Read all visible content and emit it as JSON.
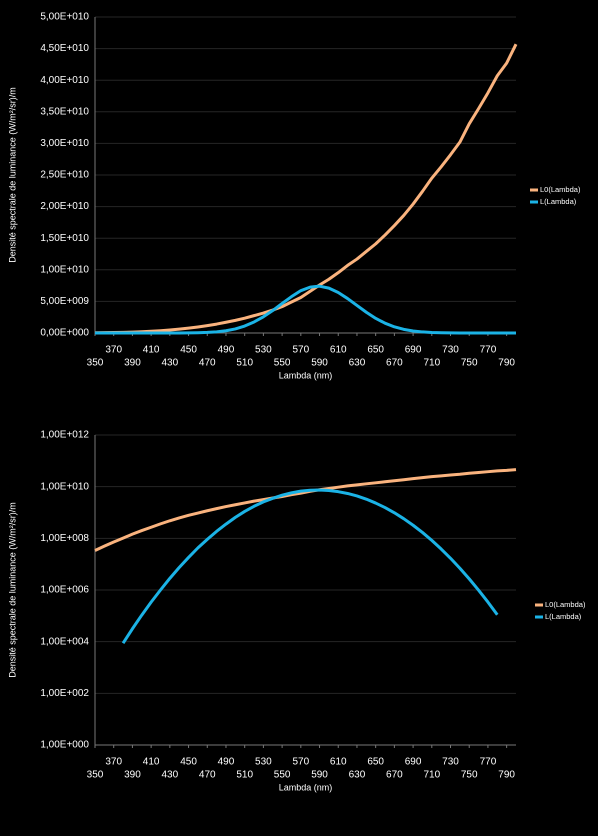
{
  "chart_data": [
    {
      "type": "line",
      "xlabel": "Lambda (nm)",
      "ylabel": "Densité spectrale de luminance (W/m²/sr)/m",
      "grid": true,
      "log_y": false,
      "legend": "right",
      "x": [
        350,
        360,
        370,
        380,
        390,
        400,
        410,
        420,
        430,
        440,
        450,
        460,
        470,
        480,
        490,
        500,
        510,
        520,
        530,
        540,
        550,
        560,
        570,
        580,
        590,
        600,
        610,
        620,
        630,
        640,
        650,
        660,
        670,
        680,
        690,
        700,
        710,
        720,
        730,
        740,
        750,
        760,
        770,
        780,
        790,
        800
      ],
      "series": [
        {
          "name": "L0(Lambda)",
          "color": "#fab37e",
          "values": [
            33900000.0,
            50100000.0,
            72400000.0,
            102000000.0,
            145000000.0,
            200000000.0,
            269000000.0,
            363000000.0,
            479000000.0,
            617000000.0,
            776000000.0,
            955000000.0,
            1170000000.0,
            1410000000.0,
            1700000000.0,
            2000000000.0,
            2340000000.0,
            2750000000.0,
            3160000000.0,
            3630000000.0,
            4170000000.0,
            4900000000.0,
            5620000000.0,
            6610000000.0,
            7590000000.0,
            8510000000.0,
            9550000000.0,
            10700000000.0,
            11700000000.0,
            12900000000.0,
            14100000000.0,
            15500000000.0,
            17000000000.0,
            18600000000.0,
            20400000000.0,
            22400000000.0,
            24500000000.0,
            26300000000.0,
            28200000000.0,
            30200000000.0,
            33100000000.0,
            35500000000.0,
            38000000000.0,
            40700000000.0,
            42700000000.0,
            45700000000.0
          ]
        },
        {
          "name": "L(Lambda)",
          "color": "#1bb3e6",
          "values": [
            129,
            562,
            2290,
            8710,
            31600.0,
            107000.0,
            339000.0,
            1000000.0,
            2820000.0,
            7410000.0,
            18200000.0,
            42700000.0,
            91200000.0,
            186000000.0,
            355000000.0,
            646000000.0,
            1100000000.0,
            1740000000.0,
            2570000000.0,
            3550000000.0,
            4680000000.0,
            5750000000.0,
            6700000000.0,
            7260000000.0,
            7410000000.0,
            7100000000.0,
            6410000000.0,
            5450000000.0,
            4360000000.0,
            3280000000.0,
            2320000000.0,
            1550000000.0,
            975000000.0,
            577000000.0,
            321000000.0,
            169000000.0,
            83200000.0,
            38600000.0,
            16900000.0,
            6970000.0,
            2700000.0,
            986000.0,
            340000.0,
            110000.0,
            33500.0,
            9590.0
          ]
        }
      ],
      "xlim": [
        350,
        800
      ],
      "xticks": [
        350,
        370,
        390,
        410,
        430,
        450,
        470,
        490,
        510,
        530,
        550,
        570,
        590,
        610,
        630,
        650,
        670,
        690,
        710,
        730,
        750,
        770,
        790
      ],
      "ylim": [
        0,
        50000000000.0
      ],
      "yticks": [
        {
          "value": 0,
          "label": "0,00E+000"
        },
        {
          "value": 5000000000.0,
          "label": "5,00E+009"
        },
        {
          "value": 10000000000.0,
          "label": "1,00E+010"
        },
        {
          "value": 15000000000.0,
          "label": "1,50E+010"
        },
        {
          "value": 20000000000.0,
          "label": "2,00E+010"
        },
        {
          "value": 25000000000.0,
          "label": "2,50E+010"
        },
        {
          "value": 30000000000.0,
          "label": "3,00E+010"
        },
        {
          "value": 35000000000.0,
          "label": "3,50E+010"
        },
        {
          "value": 40000000000.0,
          "label": "4,00E+010"
        },
        {
          "value": 45000000000.0,
          "label": "4,50E+010"
        },
        {
          "value": 50000000000.0,
          "label": "5,00E+010"
        }
      ]
    },
    {
      "type": "line",
      "xlabel": "Lambda (nm)",
      "ylabel": "Densité spectrale de luminance (W/m²/sr)/m",
      "grid": true,
      "log_y": true,
      "legend": "right",
      "x": [
        350,
        360,
        370,
        380,
        390,
        400,
        410,
        420,
        430,
        440,
        450,
        460,
        470,
        480,
        490,
        500,
        510,
        520,
        530,
        540,
        550,
        560,
        570,
        580,
        590,
        600,
        610,
        620,
        630,
        640,
        650,
        660,
        670,
        680,
        690,
        700,
        710,
        720,
        730,
        740,
        750,
        760,
        770,
        780,
        790,
        800
      ],
      "series": [
        {
          "name": "L0(Lambda)",
          "color": "#fab37e",
          "values": [
            33900000.0,
            50100000.0,
            72400000.0,
            102000000.0,
            145000000.0,
            200000000.0,
            269000000.0,
            363000000.0,
            479000000.0,
            617000000.0,
            776000000.0,
            955000000.0,
            1170000000.0,
            1410000000.0,
            1700000000.0,
            2000000000.0,
            2340000000.0,
            2750000000.0,
            3160000000.0,
            3630000000.0,
            4170000000.0,
            4900000000.0,
            5620000000.0,
            6610000000.0,
            7590000000.0,
            8510000000.0,
            9550000000.0,
            10700000000.0,
            11700000000.0,
            12900000000.0,
            14100000000.0,
            15500000000.0,
            17000000000.0,
            18600000000.0,
            20400000000.0,
            22400000000.0,
            24500000000.0,
            26300000000.0,
            28200000000.0,
            30200000000.0,
            33100000000.0,
            35500000000.0,
            38000000000.0,
            40700000000.0,
            42700000000.0,
            45700000000.0
          ]
        },
        {
          "name": "L(Lambda)",
          "color": "#1bb3e6",
          "values": [
            null,
            null,
            null,
            8710,
            31600.0,
            107000.0,
            339000.0,
            1000000.0,
            2820000.0,
            7410000.0,
            18200000.0,
            42700000.0,
            91200000.0,
            186000000.0,
            355000000.0,
            646000000.0,
            1100000000.0,
            1740000000.0,
            2570000000.0,
            3550000000.0,
            4680000000.0,
            5750000000.0,
            6700000000.0,
            7260000000.0,
            7410000000.0,
            7100000000.0,
            6410000000.0,
            5450000000.0,
            4360000000.0,
            3280000000.0,
            2320000000.0,
            1550000000.0,
            975000000.0,
            577000000.0,
            321000000.0,
            169000000.0,
            83200000.0,
            38600000.0,
            16900000.0,
            6970000.0,
            2700000.0,
            986000.0,
            340000.0,
            110000.0,
            null,
            null
          ]
        }
      ],
      "xlim": [
        350,
        800
      ],
      "xticks": [
        350,
        370,
        390,
        410,
        430,
        450,
        470,
        490,
        510,
        530,
        550,
        570,
        590,
        610,
        630,
        650,
        670,
        690,
        710,
        730,
        750,
        770,
        790
      ],
      "ylim": [
        1,
        1000000000000.0
      ],
      "yticks": [
        {
          "value": 1,
          "label": "1,00E+000"
        },
        {
          "value": 100,
          "label": "1,00E+002"
        },
        {
          "value": 10000,
          "label": "1,00E+004"
        },
        {
          "value": 1000000,
          "label": "1,00E+006"
        },
        {
          "value": 100000000,
          "label": "1,00E+008"
        },
        {
          "value": 10000000000,
          "label": "1,00E+010"
        },
        {
          "value": 1000000000000,
          "label": "1,00E+012"
        }
      ]
    }
  ]
}
